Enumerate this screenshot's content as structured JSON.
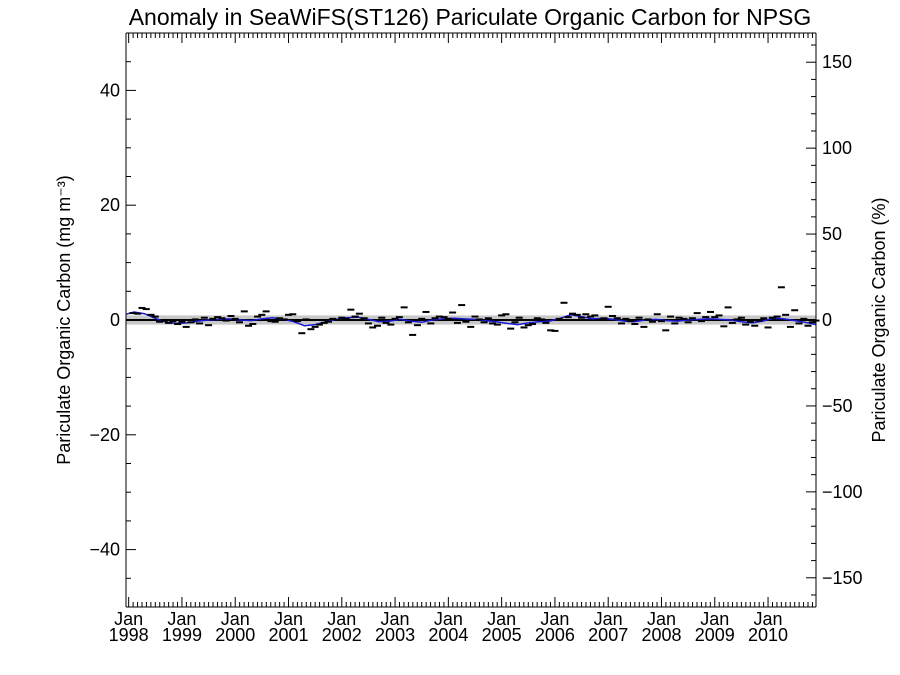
{
  "chart_data": {
    "type": "line",
    "title": "Anomaly in SeaWiFS(ST126) Pariculate Organic Carbon for NPSG",
    "ylabel_left": "Pariculate Organic Carbon (mg m⁻³)",
    "ylabel_right": "Pariculate Organic Carbon (%)",
    "ylim_left": [
      -50,
      50
    ],
    "ylim_right": [
      -167,
      167
    ],
    "xlim_years": [
      1997.95,
      2010.9
    ],
    "left_ticks": [
      {
        "value": 40,
        "label": "40"
      },
      {
        "value": 20,
        "label": "20"
      },
      {
        "value": 0,
        "label": "0"
      },
      {
        "value": -20,
        "label": "−20"
      },
      {
        "value": -40,
        "label": "−40"
      }
    ],
    "right_ticks": [
      {
        "value": 150,
        "label": "150"
      },
      {
        "value": 100,
        "label": "100"
      },
      {
        "value": 50,
        "label": "50"
      },
      {
        "value": 0,
        "label": "0"
      },
      {
        "value": -50,
        "label": "−50"
      },
      {
        "value": -100,
        "label": "−100"
      },
      {
        "value": -150,
        "label": "−150"
      }
    ],
    "x_ticks": [
      {
        "year": 1998,
        "month_label": "Jan",
        "year_label": "1998"
      },
      {
        "year": 1999,
        "month_label": "Jan",
        "year_label": "1999"
      },
      {
        "year": 2000,
        "month_label": "Jan",
        "year_label": "2000"
      },
      {
        "year": 2001,
        "month_label": "Jan",
        "year_label": "2001"
      },
      {
        "year": 2002,
        "month_label": "Jan",
        "year_label": "2002"
      },
      {
        "year": 2003,
        "month_label": "Jan",
        "year_label": "2003"
      },
      {
        "year": 2004,
        "month_label": "Jan",
        "year_label": "2004"
      },
      {
        "year": 2005,
        "month_label": "Jan",
        "year_label": "2005"
      },
      {
        "year": 2006,
        "month_label": "Jan",
        "year_label": "2006"
      },
      {
        "year": 2007,
        "month_label": "Jan",
        "year_label": "2007"
      },
      {
        "year": 2008,
        "month_label": "Jan",
        "year_label": "2008"
      },
      {
        "year": 2009,
        "month_label": "Jan",
        "year_label": "2009"
      },
      {
        "year": 2010,
        "month_label": "Jan",
        "year_label": "2010"
      }
    ],
    "band": {
      "low": -0.8,
      "high": 0.8,
      "color": "#c8c8c8"
    },
    "zero_line_color": "#000000",
    "smooth_series": {
      "color": "#1a1ad6",
      "points": [
        [
          1997.95,
          1.0
        ],
        [
          1998.1,
          1.4
        ],
        [
          1998.3,
          1.1
        ],
        [
          1998.5,
          0.3
        ],
        [
          1998.7,
          -0.4
        ],
        [
          1998.9,
          -0.6
        ],
        [
          1999.1,
          -0.5
        ],
        [
          1999.3,
          -0.2
        ],
        [
          1999.5,
          0.0
        ],
        [
          1999.7,
          0.1
        ],
        [
          1999.9,
          0.2
        ],
        [
          2000.1,
          0.0
        ],
        [
          2000.3,
          -0.1
        ],
        [
          2000.5,
          0.2
        ],
        [
          2000.7,
          0.4
        ],
        [
          2000.9,
          0.1
        ],
        [
          2001.1,
          -0.3
        ],
        [
          2001.3,
          -1.0
        ],
        [
          2001.5,
          -0.8
        ],
        [
          2001.7,
          -0.3
        ],
        [
          2001.9,
          0.1
        ],
        [
          2002.1,
          0.4
        ],
        [
          2002.3,
          0.5
        ],
        [
          2002.5,
          0.1
        ],
        [
          2002.7,
          -0.3
        ],
        [
          2002.9,
          -0.2
        ],
        [
          2003.1,
          0.1
        ],
        [
          2003.3,
          -0.2
        ],
        [
          2003.5,
          -0.4
        ],
        [
          2003.7,
          0.0
        ],
        [
          2003.9,
          0.2
        ],
        [
          2004.1,
          0.3
        ],
        [
          2004.3,
          0.2
        ],
        [
          2004.5,
          0.1
        ],
        [
          2004.7,
          -0.1
        ],
        [
          2004.9,
          -0.3
        ],
        [
          2005.1,
          -0.6
        ],
        [
          2005.3,
          -0.8
        ],
        [
          2005.5,
          -0.5
        ],
        [
          2005.7,
          -0.3
        ],
        [
          2005.9,
          -0.2
        ],
        [
          2006.1,
          0.3
        ],
        [
          2006.3,
          0.9
        ],
        [
          2006.5,
          0.6
        ],
        [
          2006.7,
          0.2
        ],
        [
          2006.9,
          0.3
        ],
        [
          2007.1,
          0.1
        ],
        [
          2007.3,
          -0.2
        ],
        [
          2007.5,
          -0.3
        ],
        [
          2007.7,
          0.0
        ],
        [
          2007.9,
          0.1
        ],
        [
          2008.1,
          -0.1
        ],
        [
          2008.3,
          -0.2
        ],
        [
          2008.5,
          0.0
        ],
        [
          2008.7,
          0.1
        ],
        [
          2008.9,
          0.2
        ],
        [
          2009.1,
          0.1
        ],
        [
          2009.3,
          0.0
        ],
        [
          2009.5,
          -0.3
        ],
        [
          2009.7,
          -0.5
        ],
        [
          2009.9,
          -0.2
        ],
        [
          2010.1,
          0.3
        ],
        [
          2010.3,
          0.2
        ],
        [
          2010.5,
          -0.1
        ],
        [
          2010.7,
          -0.4
        ],
        [
          2010.9,
          -0.8
        ]
      ]
    },
    "monthly_marks": {
      "color": "#000000",
      "points": [
        [
          1998.08,
          1.2
        ],
        [
          1998.17,
          1.1
        ],
        [
          1998.25,
          2.1
        ],
        [
          1998.33,
          1.9
        ],
        [
          1998.42,
          0.9
        ],
        [
          1998.5,
          0.6
        ],
        [
          1998.58,
          -0.3
        ],
        [
          1998.67,
          -0.1
        ],
        [
          1998.75,
          -0.5
        ],
        [
          1998.83,
          -0.2
        ],
        [
          1998.92,
          -0.7
        ],
        [
          1999.0,
          -0.3
        ],
        [
          1999.08,
          -1.2
        ],
        [
          1999.17,
          -0.4
        ],
        [
          1999.25,
          0.1
        ],
        [
          1999.33,
          -0.6
        ],
        [
          1999.42,
          0.4
        ],
        [
          1999.5,
          -0.9
        ],
        [
          1999.58,
          0.2
        ],
        [
          1999.67,
          0.5
        ],
        [
          1999.75,
          0.3
        ],
        [
          1999.83,
          -0.1
        ],
        [
          1999.92,
          0.7
        ],
        [
          2000.0,
          0.2
        ],
        [
          2000.08,
          -0.4
        ],
        [
          2000.17,
          1.5
        ],
        [
          2000.25,
          -1.0
        ],
        [
          2000.33,
          -0.7
        ],
        [
          2000.42,
          0.6
        ],
        [
          2000.5,
          0.9
        ],
        [
          2000.58,
          1.5
        ],
        [
          2000.67,
          -0.2
        ],
        [
          2000.75,
          -0.3
        ],
        [
          2000.83,
          0.3
        ],
        [
          2000.92,
          0.1
        ],
        [
          2001.0,
          0.9
        ],
        [
          2001.08,
          1.0
        ],
        [
          2001.17,
          -0.2
        ],
        [
          2001.25,
          -2.3
        ],
        [
          2001.33,
          0.1
        ],
        [
          2001.42,
          -1.6
        ],
        [
          2001.5,
          -1.2
        ],
        [
          2001.58,
          -0.8
        ],
        [
          2001.67,
          -0.5
        ],
        [
          2001.75,
          -0.3
        ],
        [
          2001.83,
          0.2
        ],
        [
          2001.92,
          0.0
        ],
        [
          2002.0,
          0.4
        ],
        [
          2002.08,
          0.2
        ],
        [
          2002.17,
          1.8
        ],
        [
          2002.25,
          0.6
        ],
        [
          2002.33,
          1.1
        ],
        [
          2002.42,
          0.3
        ],
        [
          2002.5,
          -0.6
        ],
        [
          2002.58,
          -1.3
        ],
        [
          2002.67,
          -1.0
        ],
        [
          2002.75,
          0.4
        ],
        [
          2002.83,
          -0.5
        ],
        [
          2002.92,
          -0.8
        ],
        [
          2003.0,
          0.2
        ],
        [
          2003.08,
          0.5
        ],
        [
          2003.17,
          2.2
        ],
        [
          2003.25,
          -0.4
        ],
        [
          2003.33,
          -2.6
        ],
        [
          2003.42,
          -0.9
        ],
        [
          2003.5,
          0.2
        ],
        [
          2003.58,
          1.4
        ],
        [
          2003.67,
          -0.6
        ],
        [
          2003.75,
          0.3
        ],
        [
          2003.83,
          0.6
        ],
        [
          2003.92,
          0.5
        ],
        [
          2004.0,
          0.2
        ],
        [
          2004.08,
          1.3
        ],
        [
          2004.17,
          -0.5
        ],
        [
          2004.25,
          2.6
        ],
        [
          2004.33,
          -0.3
        ],
        [
          2004.42,
          -1.2
        ],
        [
          2004.5,
          0.6
        ],
        [
          2004.58,
          0.1
        ],
        [
          2004.67,
          -0.4
        ],
        [
          2004.75,
          0.3
        ],
        [
          2004.83,
          -0.6
        ],
        [
          2004.92,
          -0.8
        ],
        [
          2005.0,
          0.8
        ],
        [
          2005.08,
          1.0
        ],
        [
          2005.17,
          -1.5
        ],
        [
          2005.25,
          -0.4
        ],
        [
          2005.33,
          0.4
        ],
        [
          2005.42,
          -1.3
        ],
        [
          2005.5,
          -0.9
        ],
        [
          2005.58,
          -0.7
        ],
        [
          2005.67,
          0.3
        ],
        [
          2005.75,
          0.1
        ],
        [
          2005.83,
          -0.5
        ],
        [
          2005.92,
          -1.8
        ],
        [
          2006.0,
          -1.9
        ],
        [
          2006.08,
          0.2
        ],
        [
          2006.17,
          3.0
        ],
        [
          2006.25,
          0.5
        ],
        [
          2006.33,
          1.1
        ],
        [
          2006.42,
          0.9
        ],
        [
          2006.5,
          0.4
        ],
        [
          2006.58,
          1.0
        ],
        [
          2006.67,
          0.6
        ],
        [
          2006.75,
          0.8
        ],
        [
          2006.83,
          0.0
        ],
        [
          2006.92,
          0.3
        ],
        [
          2007.0,
          2.3
        ],
        [
          2007.08,
          0.7
        ],
        [
          2007.17,
          0.3
        ],
        [
          2007.25,
          -0.6
        ],
        [
          2007.33,
          0.2
        ],
        [
          2007.42,
          -0.2
        ],
        [
          2007.5,
          -0.7
        ],
        [
          2007.58,
          0.4
        ],
        [
          2007.67,
          -1.2
        ],
        [
          2007.75,
          0.1
        ],
        [
          2007.83,
          -0.3
        ],
        [
          2007.92,
          1.0
        ],
        [
          2008.0,
          -0.2
        ],
        [
          2008.08,
          -1.8
        ],
        [
          2008.17,
          0.6
        ],
        [
          2008.25,
          -0.6
        ],
        [
          2008.33,
          0.4
        ],
        [
          2008.42,
          0.2
        ],
        [
          2008.5,
          -0.4
        ],
        [
          2008.58,
          0.3
        ],
        [
          2008.67,
          1.2
        ],
        [
          2008.75,
          -0.2
        ],
        [
          2008.83,
          0.5
        ],
        [
          2008.92,
          1.4
        ],
        [
          2009.0,
          0.5
        ],
        [
          2009.08,
          0.8
        ],
        [
          2009.17,
          -1.1
        ],
        [
          2009.25,
          2.2
        ],
        [
          2009.33,
          -0.5
        ],
        [
          2009.42,
          0.1
        ],
        [
          2009.5,
          0.4
        ],
        [
          2009.58,
          -0.8
        ],
        [
          2009.67,
          -0.3
        ],
        [
          2009.75,
          -1.0
        ],
        [
          2009.83,
          -0.1
        ],
        [
          2009.92,
          0.3
        ],
        [
          2010.0,
          -1.3
        ],
        [
          2010.08,
          0.4
        ],
        [
          2010.17,
          0.6
        ],
        [
          2010.25,
          5.7
        ],
        [
          2010.33,
          0.9
        ],
        [
          2010.42,
          -1.2
        ],
        [
          2010.5,
          1.7
        ],
        [
          2010.58,
          -0.6
        ],
        [
          2010.67,
          0.2
        ],
        [
          2010.75,
          -1.0
        ],
        [
          2010.83,
          -0.4
        ],
        [
          2010.9,
          -0.1
        ]
      ]
    }
  }
}
